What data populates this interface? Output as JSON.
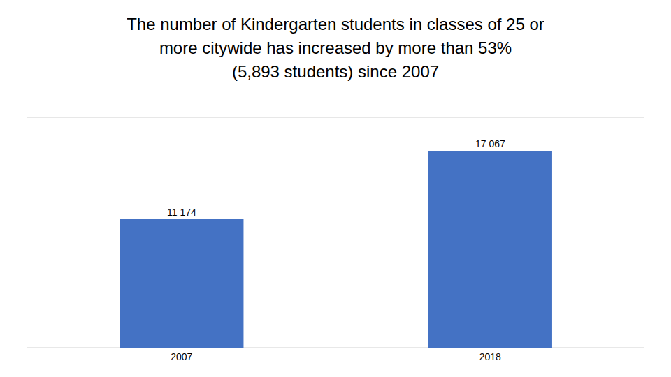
{
  "chart_data": {
    "type": "bar",
    "title": [
      "The number of Kindergarten students in classes of 25 or",
      "more citywide has increased by more than 53%",
      "(5,893 students) since 2007"
    ],
    "categories": [
      "2007",
      "2018"
    ],
    "values": [
      11174,
      17067
    ],
    "value_labels": [
      "11 174",
      "17 067"
    ],
    "data_labels": true,
    "color": "#4472C4",
    "ylim": [
      0,
      20000
    ],
    "yticks": [
      0,
      4000,
      8000,
      12000,
      16000,
      20000
    ],
    "grid": true,
    "tick_labels": "x"
  }
}
